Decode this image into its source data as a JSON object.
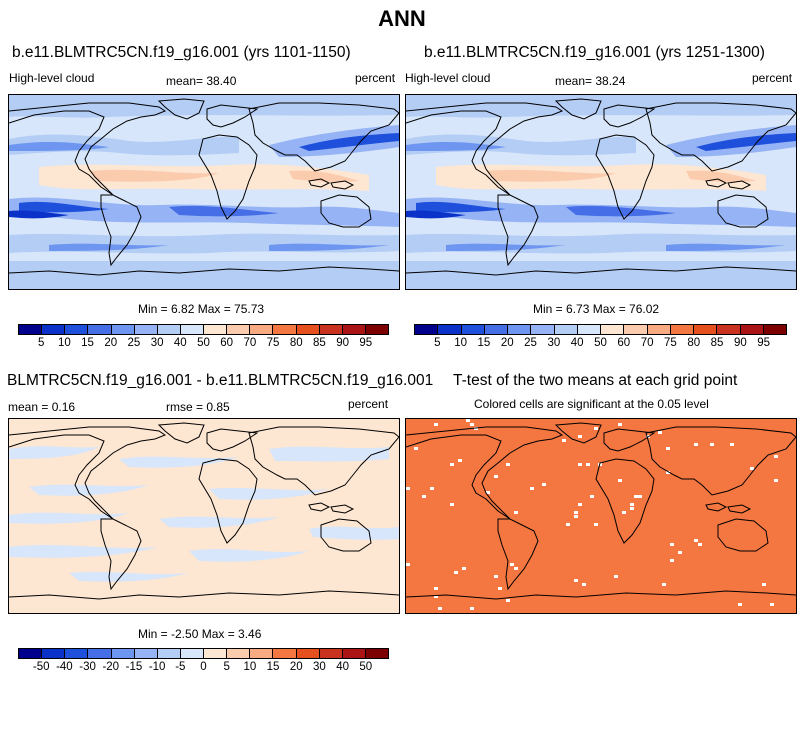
{
  "title": "ANN",
  "panels": [
    {
      "id": "p1",
      "title": "b.e11.BLMTRC5CN.f19_g16.001 (yrs 1101-1150)",
      "left_label": "High-level cloud",
      "mean_text": "mean=  38.40",
      "units": "percent",
      "minmax": "Min =   6.82 Max =  75.73",
      "field": "cloud"
    },
    {
      "id": "p2",
      "title": "b.e11.BLMTRC5CN.f19_g16.001 (yrs 1251-1300)",
      "left_label": "High-level cloud",
      "mean_text": "mean=  38.24",
      "units": "percent",
      "minmax": "Min =   6.73 Max =  76.02",
      "field": "cloud"
    },
    {
      "id": "p3",
      "title": "BLMTRC5CN.f19_g16.001 - b.e11.BLMTRC5CN.f19_g16.001",
      "mean_text": "mean =   0.16",
      "rmse_text": "rmse =   0.85",
      "units": "percent",
      "minmax": "Min =  -2.50 Max =   3.46",
      "field": "diff"
    },
    {
      "id": "p4",
      "title": "T-test of the two means at each grid point",
      "subtitle": "Colored cells are significant at the 0.05 level",
      "field": "ttest",
      "significant_color": "#f47640"
    }
  ],
  "colorbar_abs": {
    "labels": [
      "5",
      "10",
      "15",
      "20",
      "25",
      "30",
      "40",
      "50",
      "60",
      "70",
      "75",
      "80",
      "85",
      "90",
      "95"
    ],
    "colors": [
      "#00008c",
      "#0a32c8",
      "#1e50dc",
      "#466ee6",
      "#6e96f0",
      "#96b4f5",
      "#b4cdf5",
      "#d7e6fa",
      "#fde6d2",
      "#fbcbad",
      "#f8aa82",
      "#f47640",
      "#e6501e",
      "#c8321e",
      "#aa1414",
      "#7d0000"
    ]
  },
  "colorbar_diff": {
    "labels": [
      "-50",
      "-40",
      "-30",
      "-20",
      "-15",
      "-10",
      "-5",
      "0",
      "5",
      "10",
      "15",
      "20",
      "30",
      "40",
      "50"
    ],
    "colors": [
      "#00008c",
      "#0a32c8",
      "#1e50dc",
      "#466ee6",
      "#6e96f0",
      "#96b4f5",
      "#b4cdf5",
      "#d7e6fa",
      "#fde6d2",
      "#fbcbad",
      "#f8aa82",
      "#f47640",
      "#e6501e",
      "#c8321e",
      "#aa1414",
      "#7d0000"
    ]
  }
}
